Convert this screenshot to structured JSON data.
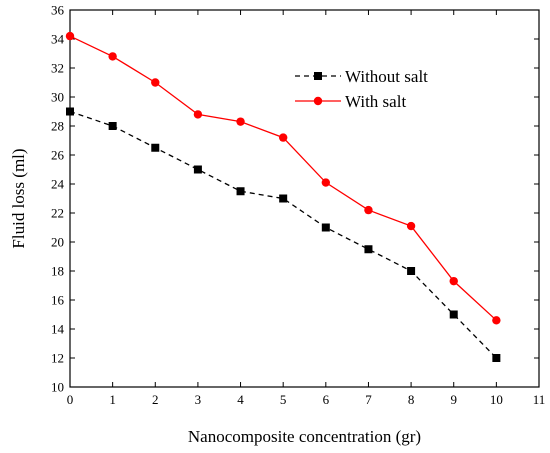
{
  "chart_data": {
    "type": "line",
    "title": "",
    "xlabel": "Nanocomposite concentration (gr)",
    "ylabel": "Fluid loss (ml)",
    "xlim": [
      0,
      11
    ],
    "ylim": [
      10,
      36
    ],
    "xticks": [
      0,
      1,
      2,
      3,
      4,
      5,
      6,
      7,
      8,
      9,
      10,
      11
    ],
    "yticks": [
      10,
      12,
      14,
      16,
      18,
      20,
      22,
      24,
      26,
      28,
      30,
      32,
      34,
      36
    ],
    "grid": false,
    "legend_position": "top-right",
    "x": [
      0,
      1,
      2,
      3,
      4,
      5,
      6,
      7,
      8,
      9,
      10
    ],
    "series": [
      {
        "name": "Without salt",
        "color": "#000000",
        "line_style": "dashed",
        "marker": "square",
        "values": [
          29.0,
          28.0,
          26.5,
          25.0,
          23.5,
          23.0,
          21.0,
          19.5,
          18.0,
          15.0,
          12.0
        ]
      },
      {
        "name": "With salt",
        "color": "#ff0000",
        "line_style": "solid",
        "marker": "circle",
        "values": [
          34.2,
          32.8,
          31.0,
          28.8,
          28.3,
          27.2,
          24.1,
          22.2,
          21.1,
          17.3,
          14.6
        ]
      }
    ]
  }
}
